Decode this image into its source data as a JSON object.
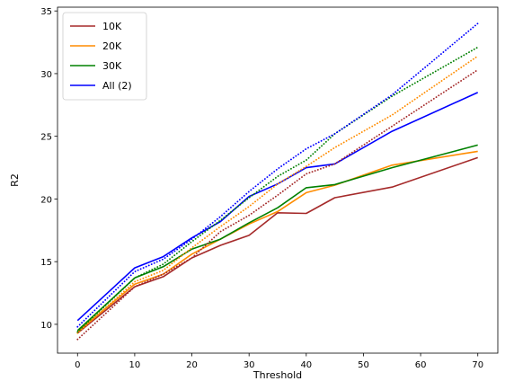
{
  "chart_data": {
    "type": "line",
    "title": "",
    "xlabel": "Threshold",
    "ylabel": "R2",
    "xlim": [
      -3.5,
      73.5
    ],
    "ylim": [
      7.7,
      35.3
    ],
    "xticks": [
      0,
      10,
      20,
      30,
      40,
      50,
      60,
      70
    ],
    "yticks": [
      10,
      15,
      20,
      25,
      30,
      35
    ],
    "grid": false,
    "legend_position": "upper-left",
    "series": [
      {
        "name": "10K",
        "color": "#a52a2a",
        "style": "solid",
        "x": [
          0,
          10,
          15,
          20,
          25,
          30,
          35,
          40,
          45,
          55,
          70
        ],
        "y": [
          9.3,
          13.0,
          13.8,
          15.3,
          16.3,
          17.1,
          18.9,
          18.85,
          20.1,
          20.95,
          23.3
        ]
      },
      {
        "name": "20K",
        "color": "#ff8c00",
        "style": "solid",
        "x": [
          0,
          10,
          15,
          20,
          25,
          30,
          35,
          40,
          45,
          55,
          70
        ],
        "y": [
          9.4,
          13.2,
          14.0,
          15.6,
          16.8,
          18.0,
          19.0,
          20.5,
          21.1,
          22.7,
          23.8
        ]
      },
      {
        "name": "30K",
        "color": "#008000",
        "style": "solid",
        "x": [
          0,
          10,
          15,
          20,
          25,
          30,
          35,
          40,
          45,
          55,
          70
        ],
        "y": [
          9.5,
          13.7,
          14.6,
          16.0,
          16.8,
          18.1,
          19.3,
          20.9,
          21.15,
          22.5,
          24.3
        ]
      },
      {
        "name": "All (2)",
        "color": "#0000ff",
        "style": "solid",
        "x": [
          0,
          10,
          15,
          20,
          25,
          30,
          35,
          40,
          45,
          55,
          70
        ],
        "y": [
          10.3,
          14.5,
          15.4,
          16.9,
          18.2,
          20.2,
          21.2,
          22.5,
          22.8,
          25.4,
          28.5
        ]
      },
      {
        "color": "#a52a2a",
        "style": "dotted",
        "x": [
          0,
          10,
          15,
          20,
          25,
          30,
          35,
          40,
          45,
          55,
          70
        ],
        "y": [
          8.8,
          13.0,
          14.0,
          15.3,
          17.4,
          18.7,
          20.3,
          22.0,
          22.8,
          25.8,
          30.3
        ]
      },
      {
        "color": "#ff8c00",
        "style": "dotted",
        "x": [
          0,
          10,
          15,
          20,
          25,
          30,
          35,
          40,
          45,
          55,
          70
        ],
        "y": [
          9.3,
          13.4,
          14.3,
          16.1,
          17.8,
          19.4,
          21.2,
          22.6,
          24.1,
          26.7,
          31.4
        ]
      },
      {
        "color": "#008000",
        "style": "dotted",
        "x": [
          0,
          10,
          15,
          20,
          25,
          30,
          35,
          40,
          45,
          55,
          70
        ],
        "y": [
          9.4,
          13.7,
          14.8,
          16.6,
          18.3,
          20.1,
          21.8,
          23.1,
          25.2,
          28.2,
          32.1
        ]
      },
      {
        "color": "#0000ff",
        "style": "dotted",
        "x": [
          0,
          10,
          15,
          20,
          25,
          30,
          35,
          40,
          45,
          55,
          70
        ],
        "y": [
          9.8,
          14.2,
          15.2,
          16.8,
          18.6,
          20.6,
          22.4,
          24.0,
          25.2,
          28.3,
          34.0
        ]
      }
    ]
  }
}
